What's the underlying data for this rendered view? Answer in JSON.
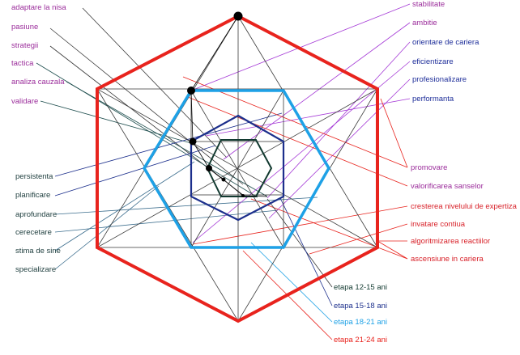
{
  "colors": {
    "red": "#e8231d",
    "light_blue": "#1ea1e6",
    "navy": "#1c2f8c",
    "dark_green": "#123a30",
    "line_gray": "#3a3a3a",
    "purple_label": "#9b2d9b",
    "violet_line": "#a53ad6",
    "navy_label": "#1f2f9a",
    "dark_teal_label": "#1d3d3d",
    "orange_red_label": "#d8222a",
    "slate_line": "#3b6d8d"
  },
  "left_top_labels": [
    "adaptare la nisa",
    "pasiune",
    "strategii",
    "tactica",
    "analiza cauzala",
    "validare"
  ],
  "left_bottom_labels": [
    "persistenta",
    "planificare",
    "aprofundare",
    "cerecetare",
    "stima de sine",
    "specializare"
  ],
  "right_top_labels": [
    "stabilitate",
    "ambitie",
    "orientare de cariera",
    "eficientizare",
    "profesionalizare",
    "performanta"
  ],
  "right_mid_labels": [
    "promovare",
    "valorificarea sanselor"
  ],
  "right_bottom_labels": [
    "cresterea nivelului de expertiza",
    "invatare contiua",
    "algoritmizarea reactiilor",
    "ascensiune in cariera"
  ],
  "stage_labels": [
    "etapa 12-15 ani",
    "etapa 15-18 ani",
    "etapa 18-21 ani",
    "etapa 21-24 ani"
  ]
}
